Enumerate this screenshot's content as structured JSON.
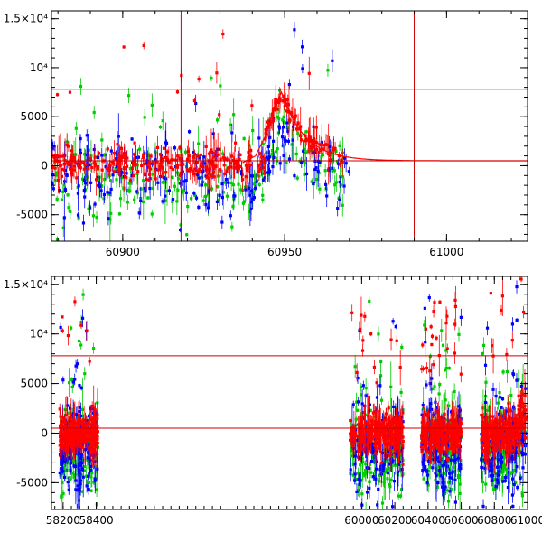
{
  "chart_data": [
    {
      "type": "scatter",
      "xlim": [
        60878,
        61025
      ],
      "ylim": [
        -7700,
        15800
      ],
      "x_ticks": [
        60900,
        60950,
        61000
      ],
      "x_tick_labels": [
        "60900",
        "60950",
        "61000"
      ],
      "y_ticks": [
        -5000,
        0,
        5000,
        10000,
        15000
      ],
      "y_tick_labels": [
        "-5000",
        "0",
        "5000",
        "10⁴",
        "1.5×10⁴"
      ],
      "reference_lines": {
        "vertical": [
          60918,
          60990
        ],
        "horizontal": [
          7800,
          500
        ]
      },
      "model_curve": {
        "name": "fit",
        "color": "#ff0000",
        "rise": [
          [
            60937,
            300
          ],
          [
            60941,
            1000
          ],
          [
            60944,
            3000
          ],
          [
            60947,
            6000
          ],
          [
            60949,
            7500
          ]
        ],
        "peak": [
          60949,
          7600
        ],
        "decay_to": 500,
        "decay_end": 61025
      },
      "series": [
        {
          "name": "blue",
          "color": "#0000ff",
          "x_range": [
            60878,
            60970
          ],
          "typical_center": -1200,
          "typical_spread": 2000
        },
        {
          "name": "green",
          "color": "#00cc00",
          "x_range": [
            60878,
            60968
          ],
          "typical_center": -1500,
          "typical_spread": 2200
        },
        {
          "name": "red",
          "color": "#ff0000",
          "x_range": [
            60878,
            60968
          ],
          "typical_center": 200,
          "typical_spread": 800
        }
      ]
    },
    {
      "type": "scatter",
      "xlim": [
        58130,
        61000
      ],
      "ylim": [
        -7700,
        15800
      ],
      "x_ticks": [
        58200,
        58400,
        60000,
        60200,
        60400,
        60600,
        60800,
        61000
      ],
      "x_tick_labels": [
        "58200",
        "58400",
        "60000",
        "60200",
        "60400",
        "60600",
        "60800",
        "61000"
      ],
      "y_ticks": [
        -5000,
        0,
        5000,
        10000,
        15000
      ],
      "y_tick_labels": [
        "-5000",
        "0",
        "5000",
        "10⁴",
        "1.5×10⁴"
      ],
      "reference_lines": {
        "horizontal": [
          7800,
          500
        ]
      },
      "seasons": [
        [
          58180,
          58410
        ],
        [
          59930,
          60250
        ],
        [
          60360,
          60600
        ],
        [
          60720,
          60990
        ]
      ],
      "series": [
        {
          "name": "blue",
          "color": "#0000ff",
          "typical_center": -1500,
          "typical_spread": 2200
        },
        {
          "name": "green",
          "color": "#00cc00",
          "typical_center": -1500,
          "typical_spread": 2400
        },
        {
          "name": "red",
          "color": "#ff0000",
          "typical_center": 0,
          "typical_spread": 900
        }
      ]
    }
  ]
}
